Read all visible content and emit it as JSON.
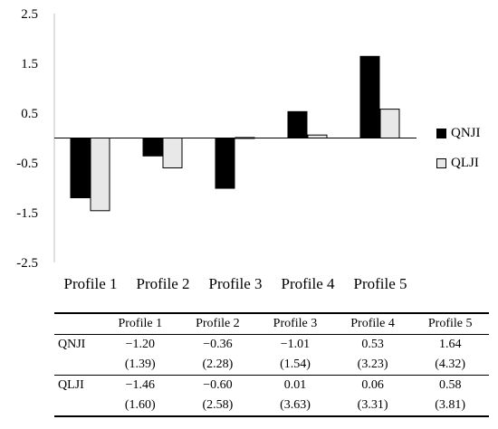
{
  "chart_data": {
    "type": "bar",
    "categories": [
      "Profile 1",
      "Profile 2",
      "Profile 3",
      "Profile 4",
      "Profile 5"
    ],
    "series": [
      {
        "name": "QNJI",
        "values": [
          -1.2,
          -0.36,
          -1.01,
          0.53,
          1.64
        ],
        "color": "#000000"
      },
      {
        "name": "QLJI",
        "values": [
          -1.46,
          -0.6,
          0.01,
          0.06,
          0.58
        ],
        "color": "#e8e8e8"
      }
    ],
    "ylim": [
      -2.5,
      2.5
    ],
    "yticks": [
      "-2.5",
      "-1.5",
      "-0.5",
      "0.5",
      "1.5",
      "2.5"
    ],
    "grid": false,
    "legend": "right"
  },
  "table": {
    "headers": [
      "",
      "Profile 1",
      "Profile 2",
      "Profile 3",
      "Profile 4",
      "Profile 5"
    ],
    "rows": [
      {
        "label": "QNJI",
        "means": [
          "−1.20",
          "−0.36",
          "−1.01",
          "0.53",
          "1.64"
        ],
        "sds": [
          "(1.39)",
          "(2.28)",
          "(1.54)",
          "(3.23)",
          "(4.32)"
        ]
      },
      {
        "label": "QLJI",
        "means": [
          "−1.46",
          "−0.60",
          "0.01",
          "0.06",
          "0.58"
        ],
        "sds": [
          "(1.60)",
          "(2.58)",
          "(3.63)",
          "(3.31)",
          "(3.81)"
        ]
      }
    ]
  }
}
